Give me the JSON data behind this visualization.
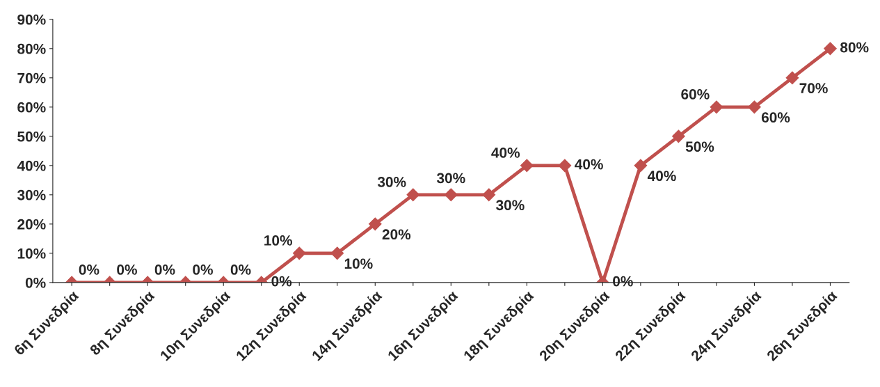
{
  "chart_data": {
    "type": "line",
    "categories": [
      "6η Συνεδρία",
      null,
      "8η Συνεδρία",
      null,
      "10η Συνεδρία",
      null,
      "12η Συνεδρία",
      null,
      "14η Συνεδρία",
      null,
      "16η Συνεδρία",
      null,
      "18η Συνεδρία",
      null,
      "20η Συνεδρία",
      null,
      "22η Συνεδρία",
      null,
      "24η Συνεδρία",
      null,
      "26η Συνεδρία"
    ],
    "series": [
      {
        "color": "#c0504d",
        "values": [
          0,
          0,
          0,
          0,
          0,
          0,
          10,
          10,
          20,
          30,
          30,
          30,
          40,
          40,
          0,
          40,
          50,
          60,
          60,
          70,
          80
        ],
        "value_labels": [
          "0%",
          "0%",
          "0%",
          "0%",
          "0%",
          "0%",
          "10%",
          "10%",
          "20%",
          "30%",
          "30%",
          "30%",
          "40%",
          "40%",
          "0%",
          "40%",
          "50%",
          "60%",
          "60%",
          "70%",
          "80%"
        ]
      }
    ],
    "ylim": [
      0,
      90
    ],
    "yticks": [
      {
        "value": 0,
        "label": "0%"
      },
      {
        "value": 10,
        "label": "10%"
      },
      {
        "value": 20,
        "label": "20%"
      },
      {
        "value": 30,
        "label": "30%"
      },
      {
        "value": 40,
        "label": "40%"
      },
      {
        "value": 50,
        "label": "50%"
      },
      {
        "value": 60,
        "label": "60%"
      },
      {
        "value": 70,
        "label": "70%"
      },
      {
        "value": 80,
        "label": "80%"
      },
      {
        "value": 90,
        "label": "90%"
      }
    ],
    "marker": "diamond",
    "line_style": "solid",
    "grid": false,
    "legend": false
  }
}
